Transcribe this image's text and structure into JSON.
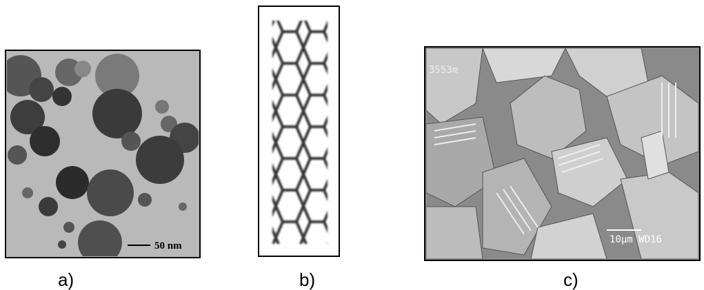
{
  "panels": [
    {
      "label": "a)",
      "scale_bar": "50 nm"
    },
    {
      "label": "b)"
    },
    {
      "label": "c)",
      "annotations": [
        "3553m",
        "10µm WD16"
      ]
    }
  ]
}
